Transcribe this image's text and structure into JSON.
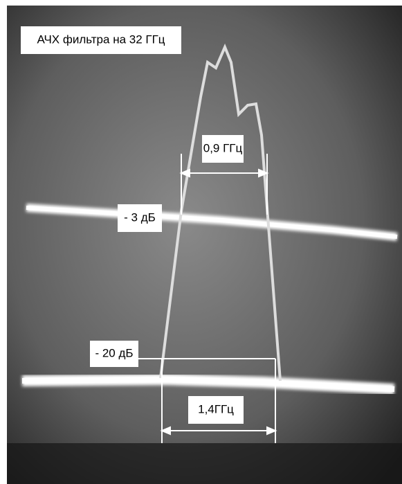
{
  "title": "АЧХ фильтра на 32 ГГц",
  "labels": {
    "passband_width": "0,9 ГГц",
    "level_3db": "- 3 дБ",
    "level_20db": "- 20 дБ",
    "width_20db": "1,4ГГц"
  }
}
